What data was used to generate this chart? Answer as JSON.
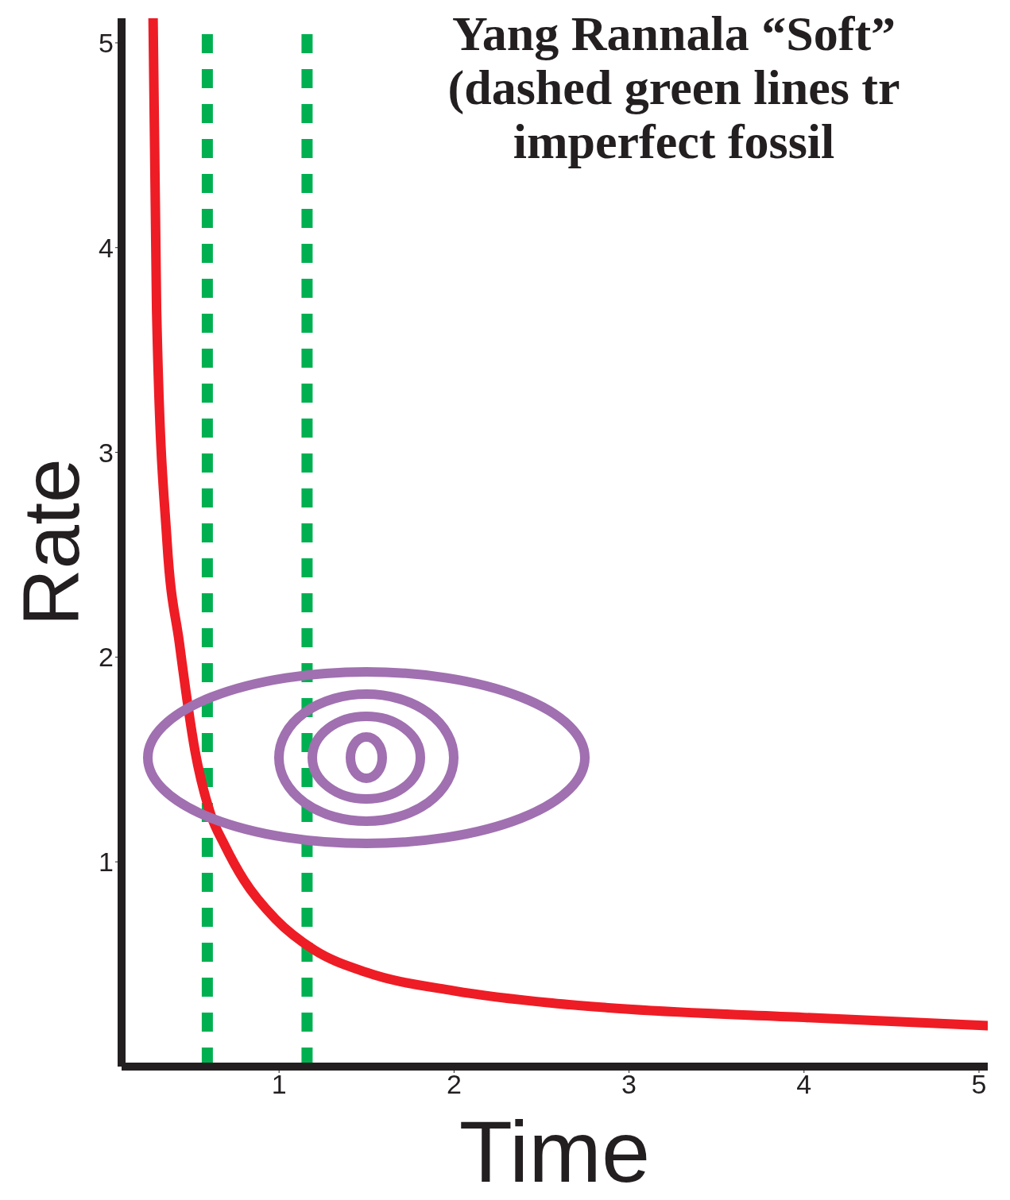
{
  "chart_data": {
    "type": "line",
    "title": "Yang Rannala “Soft”\n(dashed green lines tr\nimperfect fossil",
    "xlabel": "Time",
    "ylabel": "Rate",
    "xlim": [
      0.1,
      5.05
    ],
    "ylim": [
      0,
      5.12
    ],
    "xticks": [
      1,
      2,
      3,
      4,
      5
    ],
    "yticks": [
      1,
      2,
      3,
      4,
      5
    ],
    "series": [
      {
        "color": "#ee1c25",
        "x": [
          0.28,
          0.3,
          0.36,
          0.43,
          0.52,
          0.61,
          0.69,
          0.8,
          0.98,
          1.2,
          1.5,
          2.0,
          2.56,
          3.0,
          4.0,
          5.05
        ],
        "values": [
          5.12,
          3.7,
          2.56,
          2.07,
          1.54,
          1.23,
          1.08,
          0.91,
          0.72,
          0.57,
          0.46,
          0.37,
          0.31,
          0.28,
          0.24,
          0.2
        ]
      }
    ],
    "ref_lines": [
      {
        "axis": "x",
        "value": 0.59,
        "color": "#00b050",
        "line_style": "dashed"
      },
      {
        "axis": "x",
        "value": 1.16,
        "color": "#00b050",
        "line_style": "dashed"
      }
    ]
  }
}
